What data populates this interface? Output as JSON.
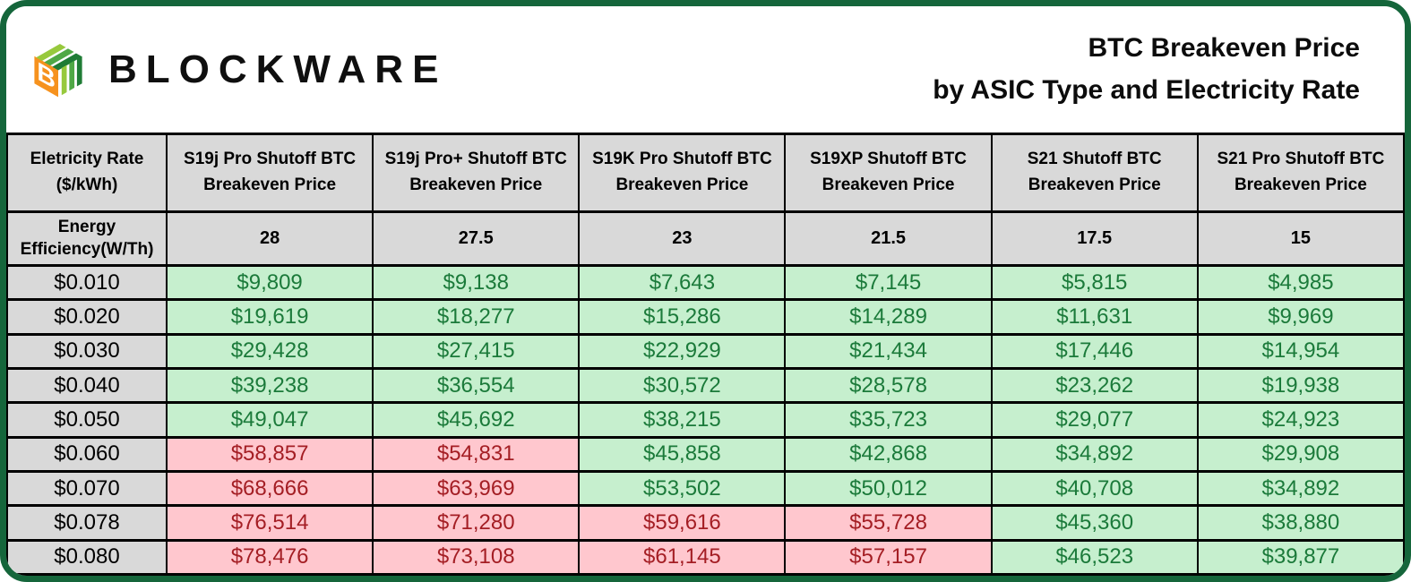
{
  "brand": {
    "name": "BLOCKWARE",
    "logo_icon": "blockware-cube-icon",
    "logo_colors": {
      "orange": "#F6921E",
      "green_light": "#97C93D",
      "green_mid": "#4FA845",
      "green_dark": "#1F7C35"
    }
  },
  "title": {
    "line1": "BTC Breakeven Price",
    "line2": "by ASIC Type and Electricity Rate"
  },
  "colors": {
    "frame_border_green": "#15663B",
    "header_cell_gray": "#D9D9D9",
    "good_cell_bg": "#C6EFCE",
    "good_cell_text": "#1B7A3A",
    "bad_cell_bg": "#FFC7CE",
    "bad_cell_text": "#A41E24",
    "grid_line": "#000000"
  },
  "chart_data": {
    "type": "table",
    "title": "BTC Breakeven Price by ASIC Type and Electricity Rate",
    "rate_header": {
      "line1": "Eletricity Rate",
      "line2": "($/kWh)"
    },
    "efficiency_header": {
      "line1": "Energy Efficiency",
      "line2": "(W/Th)"
    },
    "columns": [
      {
        "name": "S19j Pro",
        "header_line1": "S19j Pro Shutoff BTC",
        "header_line2": "Breakeven Price",
        "efficiency_w_th": "28"
      },
      {
        "name": "S19j Pro+",
        "header_line1": "S19j Pro+ Shutoff BTC",
        "header_line2": "Breakeven Price",
        "efficiency_w_th": "27.5"
      },
      {
        "name": "S19K Pro",
        "header_line1": "S19K Pro Shutoff BTC",
        "header_line2": "Breakeven Price",
        "efficiency_w_th": "23"
      },
      {
        "name": "S19XP",
        "header_line1": "S19XP Shutoff BTC",
        "header_line2": "Breakeven Price",
        "efficiency_w_th": "21.5"
      },
      {
        "name": "S21",
        "header_line1": "S21 Shutoff BTC",
        "header_line2": "Breakeven Price",
        "efficiency_w_th": "17.5"
      },
      {
        "name": "S21 Pro",
        "header_line1": "S21 Pro Shutoff BTC",
        "header_line2": "Breakeven Price",
        "efficiency_w_th": "15"
      }
    ],
    "rows": [
      {
        "rate": "$0.010",
        "cells": [
          {
            "value": "$9,809",
            "status": "good"
          },
          {
            "value": "$9,138",
            "status": "good"
          },
          {
            "value": "$7,643",
            "status": "good"
          },
          {
            "value": "$7,145",
            "status": "good"
          },
          {
            "value": "$5,815",
            "status": "good"
          },
          {
            "value": "$4,985",
            "status": "good"
          }
        ]
      },
      {
        "rate": "$0.020",
        "cells": [
          {
            "value": "$19,619",
            "status": "good"
          },
          {
            "value": "$18,277",
            "status": "good"
          },
          {
            "value": "$15,286",
            "status": "good"
          },
          {
            "value": "$14,289",
            "status": "good"
          },
          {
            "value": "$11,631",
            "status": "good"
          },
          {
            "value": "$9,969",
            "status": "good"
          }
        ]
      },
      {
        "rate": "$0.030",
        "cells": [
          {
            "value": "$29,428",
            "status": "good"
          },
          {
            "value": "$27,415",
            "status": "good"
          },
          {
            "value": "$22,929",
            "status": "good"
          },
          {
            "value": "$21,434",
            "status": "good"
          },
          {
            "value": "$17,446",
            "status": "good"
          },
          {
            "value": "$14,954",
            "status": "good"
          }
        ]
      },
      {
        "rate": "$0.040",
        "cells": [
          {
            "value": "$39,238",
            "status": "good"
          },
          {
            "value": "$36,554",
            "status": "good"
          },
          {
            "value": "$30,572",
            "status": "good"
          },
          {
            "value": "$28,578",
            "status": "good"
          },
          {
            "value": "$23,262",
            "status": "good"
          },
          {
            "value": "$19,938",
            "status": "good"
          }
        ]
      },
      {
        "rate": "$0.050",
        "cells": [
          {
            "value": "$49,047",
            "status": "good"
          },
          {
            "value": "$45,692",
            "status": "good"
          },
          {
            "value": "$38,215",
            "status": "good"
          },
          {
            "value": "$35,723",
            "status": "good"
          },
          {
            "value": "$29,077",
            "status": "good"
          },
          {
            "value": "$24,923",
            "status": "good"
          }
        ]
      },
      {
        "rate": "$0.060",
        "cells": [
          {
            "value": "$58,857",
            "status": "bad"
          },
          {
            "value": "$54,831",
            "status": "bad"
          },
          {
            "value": "$45,858",
            "status": "good"
          },
          {
            "value": "$42,868",
            "status": "good"
          },
          {
            "value": "$34,892",
            "status": "good"
          },
          {
            "value": "$29,908",
            "status": "good"
          }
        ]
      },
      {
        "rate": "$0.070",
        "cells": [
          {
            "value": "$68,666",
            "status": "bad"
          },
          {
            "value": "$63,969",
            "status": "bad"
          },
          {
            "value": "$53,502",
            "status": "good"
          },
          {
            "value": "$50,012",
            "status": "good"
          },
          {
            "value": "$40,708",
            "status": "good"
          },
          {
            "value": "$34,892",
            "status": "good"
          }
        ]
      },
      {
        "rate": "$0.078",
        "cells": [
          {
            "value": "$76,514",
            "status": "bad"
          },
          {
            "value": "$71,280",
            "status": "bad"
          },
          {
            "value": "$59,616",
            "status": "bad"
          },
          {
            "value": "$55,728",
            "status": "bad"
          },
          {
            "value": "$45,360",
            "status": "good"
          },
          {
            "value": "$38,880",
            "status": "good"
          }
        ]
      },
      {
        "rate": "$0.080",
        "cells": [
          {
            "value": "$78,476",
            "status": "bad"
          },
          {
            "value": "$73,108",
            "status": "bad"
          },
          {
            "value": "$61,145",
            "status": "bad"
          },
          {
            "value": "$57,157",
            "status": "bad"
          },
          {
            "value": "$46,523",
            "status": "good"
          },
          {
            "value": "$39,877",
            "status": "good"
          }
        ]
      }
    ]
  }
}
